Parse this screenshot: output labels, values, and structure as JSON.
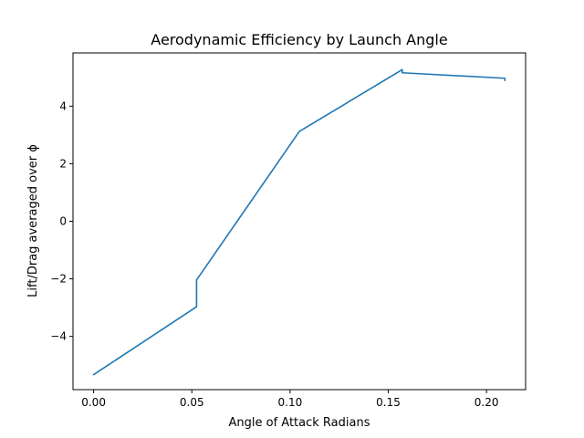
{
  "chart_data": {
    "type": "line",
    "title": "Aerodynamic Efficiency by Launch Angle",
    "xlabel": "Angle of Attack Radians",
    "ylabel": "Lift/Drag averaged over ϕ",
    "xlim": [
      -0.0105,
      0.2199
    ],
    "ylim": [
      -5.85,
      5.85
    ],
    "xticks": [
      0.0,
      0.05,
      0.1,
      0.15,
      0.2
    ],
    "xtick_labels": [
      "0.00",
      "0.05",
      "0.10",
      "0.15",
      "0.20"
    ],
    "yticks": [
      -4,
      -2,
      0,
      2,
      4
    ],
    "ytick_labels": [
      "−4",
      "−2",
      "0",
      "2",
      "4"
    ],
    "grid": false,
    "series": [
      {
        "color": "#1f77b4",
        "x": [
          0.0,
          0.0524,
          0.0524,
          0.1047,
          0.1571,
          0.1571,
          0.2094,
          0.2094
        ],
        "y": [
          -5.33,
          -2.97,
          -2.04,
          3.12,
          5.27,
          5.16,
          4.97,
          4.89
        ]
      }
    ]
  }
}
